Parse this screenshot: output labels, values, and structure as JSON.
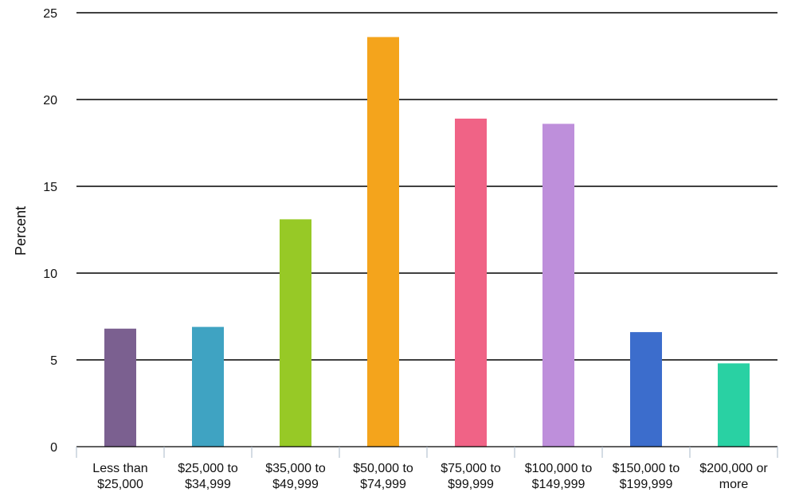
{
  "chart_data": {
    "type": "bar",
    "ylabel": "Percent",
    "xlabel": "",
    "ylim": [
      0,
      25
    ],
    "yticks": [
      0,
      5,
      10,
      15,
      20,
      25
    ],
    "grid": true,
    "categories": [
      [
        "Less than",
        "$25,000"
      ],
      [
        "$25,000 to",
        "$34,999"
      ],
      [
        "$35,000 to",
        "$49,999"
      ],
      [
        "$50,000 to",
        "$74,999"
      ],
      [
        "$75,000 to",
        "$99,999"
      ],
      [
        "$100,000 to",
        "$149,999"
      ],
      [
        "$150,000 to",
        "$199,999"
      ],
      [
        "$200,000 or",
        "more"
      ]
    ],
    "values": [
      6.8,
      6.9,
      13.1,
      23.6,
      18.9,
      18.6,
      6.6,
      4.8
    ],
    "colors": [
      "#7b6090",
      "#3fa3c2",
      "#97c926",
      "#f4a41c",
      "#f06386",
      "#be8fdb",
      "#3c6dcc",
      "#29d1a3"
    ]
  }
}
